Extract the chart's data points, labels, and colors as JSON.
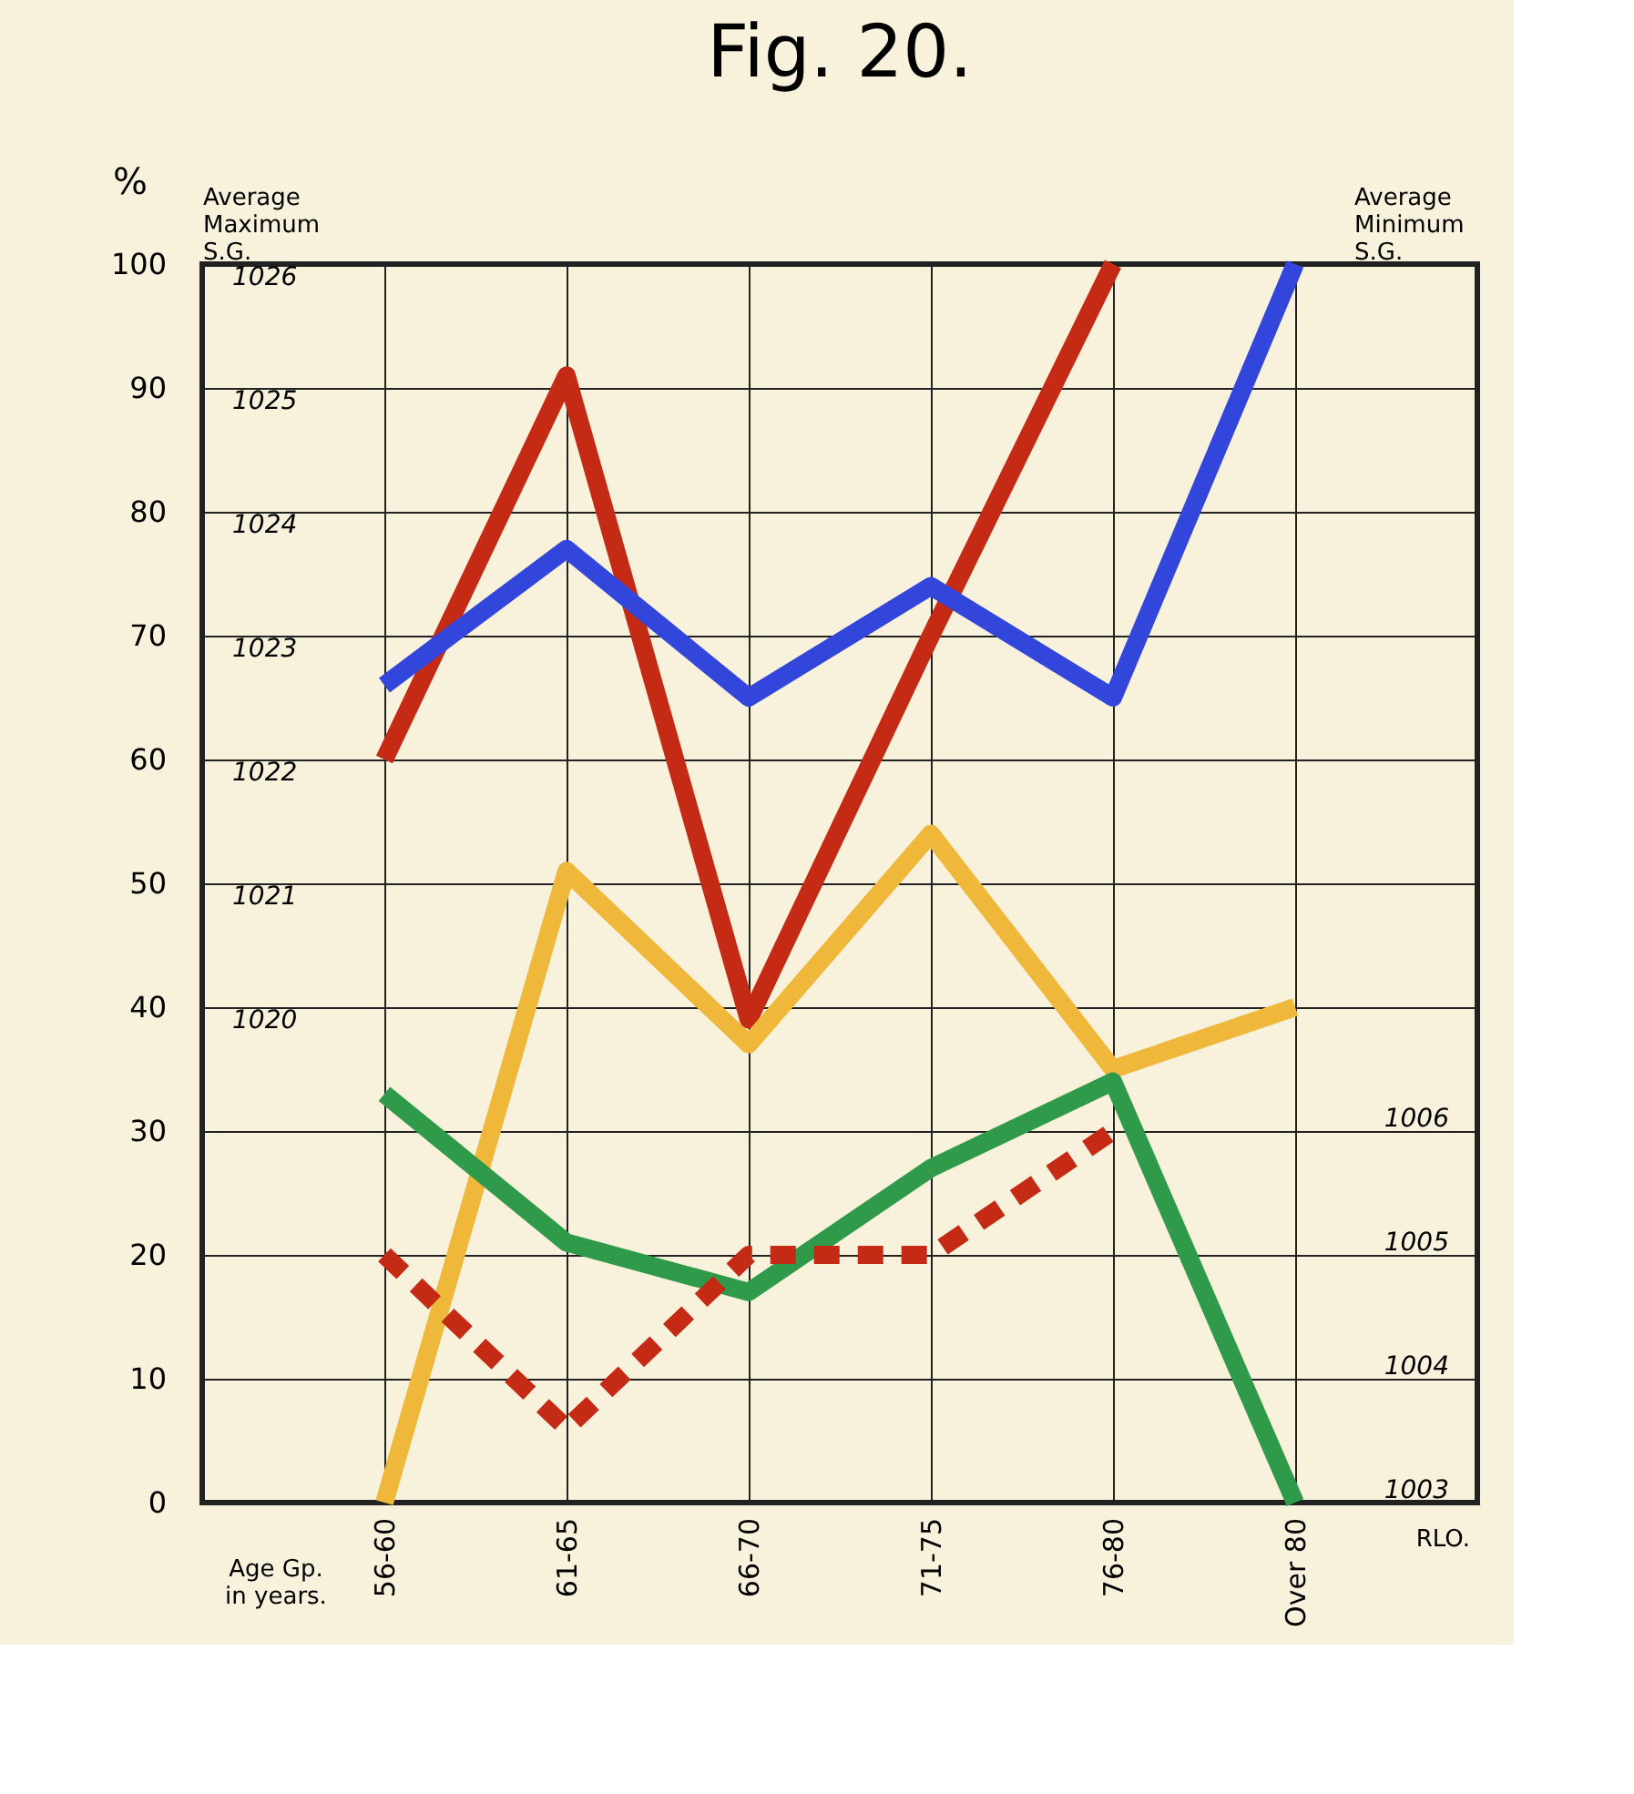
{
  "chart_data": {
    "type": "line",
    "title": "Fig. 20.",
    "xlabel": "Age Gp. in years.",
    "ylabel": "%",
    "y2label": "Average Maximum S.G.",
    "y3label": "Average Minimum S.G.",
    "categories": [
      "56-60",
      "61-65",
      "66-70",
      "71-75",
      "76-80",
      "Over 80"
    ],
    "series": [
      {
        "color": "#c42a14",
        "values": [
          60,
          91,
          39,
          70,
          100,
          null
        ],
        "line_style": "solid"
      },
      {
        "color": "#3346dc",
        "values": [
          66,
          77,
          65,
          74,
          65,
          100
        ],
        "line_style": "solid"
      },
      {
        "color": "#f0b83a",
        "values": [
          0,
          51,
          37,
          54,
          35,
          40
        ],
        "line_style": "solid"
      },
      {
        "color": "#2f9a4a",
        "values": [
          33,
          21,
          17,
          27,
          34,
          0
        ],
        "line_style": "solid"
      },
      {
        "color": "#c42a14",
        "values": [
          20,
          6,
          20,
          20,
          30,
          null
        ],
        "line_style": "dashed"
      }
    ],
    "ylim": [
      0,
      100
    ],
    "yticks": [
      0,
      10,
      20,
      30,
      40,
      50,
      60,
      70,
      80,
      90,
      100
    ],
    "y2lim": [
      1016,
      1026
    ],
    "y2ticks": [
      1020,
      1021,
      1022,
      1023,
      1024,
      1025,
      1026
    ],
    "y3lim": [
      1003,
      1013
    ],
    "y3ticks": [
      1003,
      1004,
      1005,
      1006
    ],
    "grid": true,
    "annotations": [
      "RLO."
    ]
  }
}
